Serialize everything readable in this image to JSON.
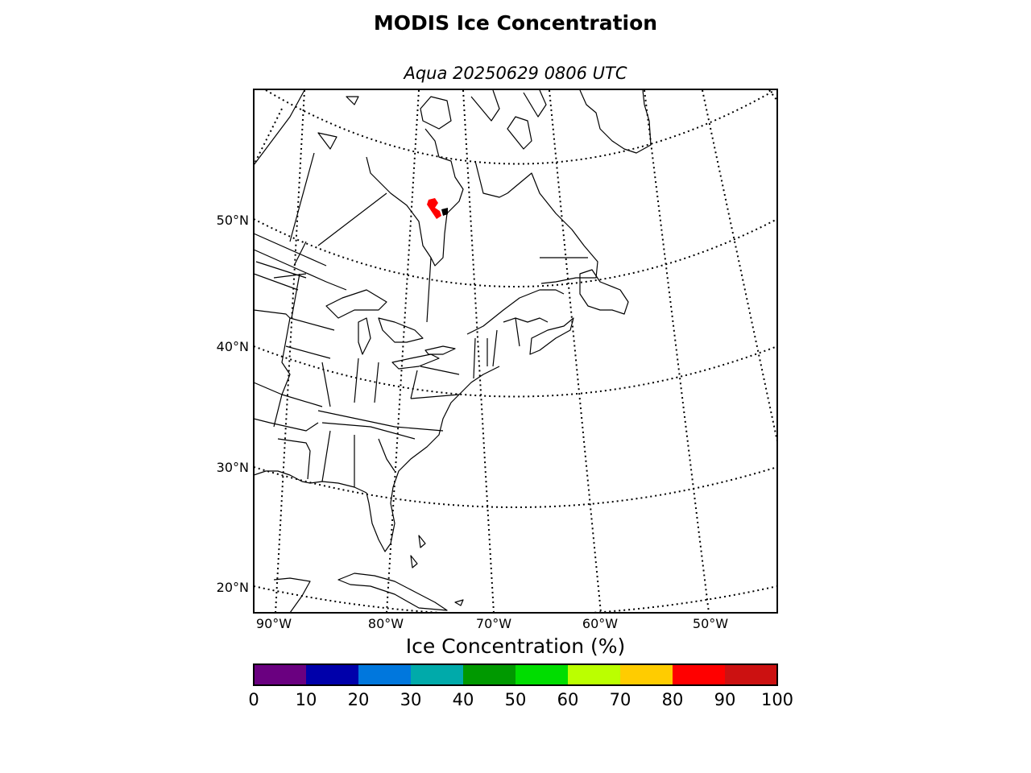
{
  "title": "MODIS Ice Concentration",
  "subtitle": "Aqua 20250629 0806 UTC",
  "map": {
    "lat_labels": [
      "50°N",
      "40°N",
      "30°N",
      "20°N"
    ],
    "lon_labels": [
      "90°W",
      "80°W",
      "70°W",
      "60°W",
      "50°W"
    ],
    "ice_color": "#ff0000"
  },
  "colorbar": {
    "label": "Ice Concentration (%)",
    "ticks": [
      "0",
      "10",
      "20",
      "30",
      "40",
      "50",
      "60",
      "70",
      "80",
      "90",
      "100"
    ],
    "colors": [
      "#6a0080",
      "#0000aa",
      "#0077dd",
      "#00aaaa",
      "#009900",
      "#00dd00",
      "#bbff00",
      "#ffcc00",
      "#ff0000",
      "#cc1111"
    ]
  }
}
